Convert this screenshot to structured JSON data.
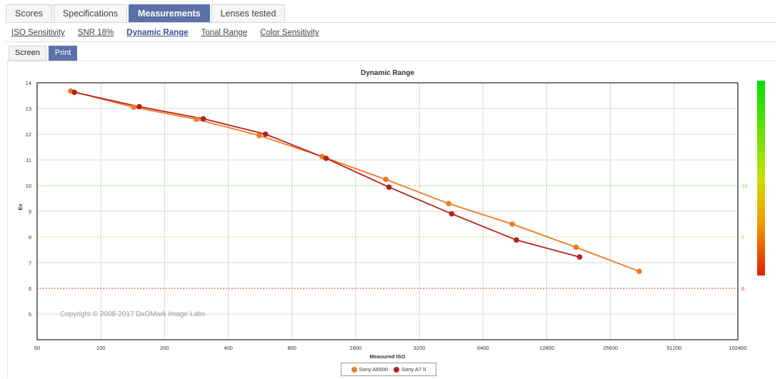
{
  "tabs": [
    {
      "label": "Scores",
      "active": false
    },
    {
      "label": "Specifications",
      "active": false
    },
    {
      "label": "Measurements",
      "active": true
    },
    {
      "label": "Lenses tested",
      "active": false
    }
  ],
  "subtabs": [
    {
      "label": "ISO Sensitivity",
      "active": false
    },
    {
      "label": "SNR 18%",
      "active": false
    },
    {
      "label": "Dynamic Range",
      "active": true
    },
    {
      "label": "Tonal Range",
      "active": false
    },
    {
      "label": "Color Sensitivity",
      "active": false
    }
  ],
  "mode": {
    "screen": "Screen",
    "print": "Print",
    "active": "print"
  },
  "copyright": "Copyright © 2008-2017 DxOMark Image Labs",
  "chart_data": {
    "type": "line",
    "title": "Dynamic Range",
    "xlabel": "Measured ISO",
    "ylabel": "Ev",
    "x_scale": "log2",
    "xlim": [
      50,
      102400
    ],
    "ylim": [
      4,
      14
    ],
    "x_ticks": [
      50,
      100,
      200,
      400,
      800,
      1600,
      3200,
      6400,
      12800,
      25600,
      51200,
      102400
    ],
    "y_ticks": [
      5,
      6,
      7,
      8,
      9,
      10,
      11,
      12,
      13,
      14
    ],
    "grid": true,
    "reference_lines": [
      {
        "value": 10,
        "label": "10",
        "color": "#7fd45a",
        "style": "dotted"
      },
      {
        "value": 8,
        "label": "8",
        "color": "#c9d46a",
        "style": "dotted"
      },
      {
        "value": 6,
        "label": "6",
        "color": "#d03a2a",
        "style": "dotted"
      }
    ],
    "colorbar": {
      "top_color": "#00e000",
      "bottom_color": "#e02000"
    },
    "legend_position": "bottom-center",
    "series": [
      {
        "name": "Sony A6500",
        "color": "#f07a22",
        "points": [
          [
            72,
            13.68
          ],
          [
            143,
            13.05
          ],
          [
            283,
            12.58
          ],
          [
            560,
            11.95
          ],
          [
            1110,
            11.13
          ],
          [
            2220,
            10.24
          ],
          [
            4400,
            9.3
          ],
          [
            8800,
            8.5
          ],
          [
            17600,
            7.6
          ],
          [
            35000,
            6.66
          ]
        ]
      },
      {
        "name": "Sony A7 II",
        "color": "#b5231c",
        "points": [
          [
            75,
            13.63
          ],
          [
            152,
            13.07
          ],
          [
            305,
            12.6
          ],
          [
            600,
            12.0
          ],
          [
            1160,
            11.06
          ],
          [
            2300,
            9.94
          ],
          [
            4550,
            8.9
          ],
          [
            9200,
            7.88
          ],
          [
            18300,
            7.22
          ]
        ]
      }
    ]
  }
}
